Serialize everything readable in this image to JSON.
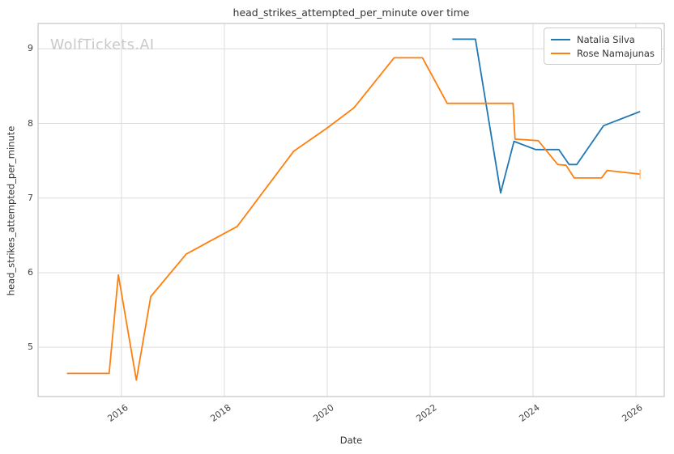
{
  "watermark": "WolfTickets.AI",
  "colors": {
    "grid": "#dcdcdc",
    "spine": "#c4c4c4",
    "title_text": "#333333",
    "tick_text": "#444444",
    "watermark_text": "#c9c9c9",
    "legend_border": "#cccccc",
    "series_blue": "#1f77b4",
    "series_orange": "#ff7f0e",
    "orange_end_cap": "#ffc08a"
  },
  "chart_data": {
    "type": "line",
    "title": "head_strikes_attempted_per_minute over time",
    "xlabel": "Date",
    "ylabel": "head_strikes_attempted_per_minute",
    "x_ticks": [
      "2016",
      "2018",
      "2020",
      "2022",
      "2024",
      "2026"
    ],
    "x_tick_values": [
      2016,
      2018,
      2020,
      2022,
      2024,
      2026
    ],
    "y_ticks": [
      "5",
      "6",
      "7",
      "8",
      "9"
    ],
    "y_tick_values": [
      5,
      6,
      7,
      8,
      9
    ],
    "xlim": [
      2014.38,
      2026.55
    ],
    "ylim": [
      4.34,
      9.34
    ],
    "grid": true,
    "legend_position": "top-right",
    "series": [
      {
        "name": "Natalia Silva",
        "color": "#1f77b4",
        "end_cap": false,
        "points": [
          [
            2022.43,
            9.13
          ],
          [
            2022.88,
            9.13
          ],
          [
            2023.37,
            7.07
          ],
          [
            2023.63,
            7.76
          ],
          [
            2024.05,
            7.65
          ],
          [
            2024.5,
            7.65
          ],
          [
            2024.7,
            7.45
          ],
          [
            2024.85,
            7.45
          ],
          [
            2025.37,
            7.97
          ],
          [
            2026.08,
            8.16
          ]
        ]
      },
      {
        "name": "Rose Namajunas",
        "color": "#ff7f0e",
        "end_cap": true,
        "points": [
          [
            2014.94,
            4.65
          ],
          [
            2015.76,
            4.65
          ],
          [
            2015.94,
            5.97
          ],
          [
            2016.29,
            4.56
          ],
          [
            2016.57,
            5.68
          ],
          [
            2017.26,
            6.25
          ],
          [
            2018.25,
            6.62
          ],
          [
            2019.35,
            7.63
          ],
          [
            2019.98,
            7.93
          ],
          [
            2020.52,
            8.21
          ],
          [
            2021.3,
            8.88
          ],
          [
            2021.85,
            8.88
          ],
          [
            2022.33,
            8.27
          ],
          [
            2023.61,
            8.27
          ],
          [
            2023.65,
            7.79
          ],
          [
            2024.1,
            7.77
          ],
          [
            2024.48,
            7.45
          ],
          [
            2024.64,
            7.44
          ],
          [
            2024.8,
            7.27
          ],
          [
            2025.33,
            7.27
          ],
          [
            2025.44,
            7.37
          ],
          [
            2026.08,
            7.32
          ]
        ]
      }
    ]
  }
}
